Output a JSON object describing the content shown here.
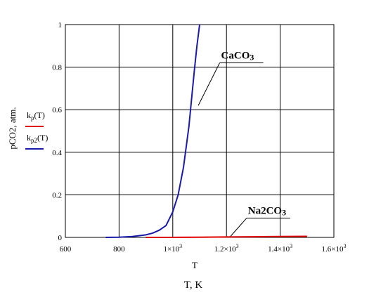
{
  "chart_data": {
    "type": "line",
    "xlabel": "T",
    "xlabel_outer": "T, K",
    "ylabel": "pCO2, atm.",
    "xlim": [
      600,
      1600
    ],
    "ylim": [
      0,
      1
    ],
    "grid": true,
    "x_ticks": [
      600,
      800,
      1000,
      1200,
      1400,
      1600
    ],
    "x_tick_labels": [
      {
        "base": "600",
        "exp": ""
      },
      {
        "base": "800",
        "exp": ""
      },
      {
        "base": "1×10",
        "exp": "3"
      },
      {
        "base": "1.2×10",
        "exp": "3"
      },
      {
        "base": "1.4×10",
        "exp": "3"
      },
      {
        "base": "1.6×10",
        "exp": "3"
      }
    ],
    "y_ticks": [
      0,
      0.2,
      0.4,
      0.6,
      0.8,
      1
    ],
    "y_tick_labels": [
      "0",
      "0.2",
      "0.4",
      "0.6",
      "0.8",
      "1"
    ],
    "legend": [
      {
        "label": "k",
        "sub": "p",
        "suffix": "(T)",
        "color": "#e00000"
      },
      {
        "label": "k",
        "sub": "p2",
        "suffix": "(T)",
        "color": "#1a1aa8"
      }
    ],
    "series": [
      {
        "name": "kp(T)",
        "color": "#e00000",
        "x": [
          900,
          1000,
          1100,
          1200,
          1300,
          1400,
          1500
        ],
        "y": [
          0,
          0,
          0.001,
          0.002,
          0.003,
          0.004,
          0.005
        ]
      },
      {
        "name": "kp2(T)",
        "color": "#1a1aa8",
        "x": [
          750,
          800,
          850,
          900,
          925,
          950,
          975,
          1000,
          1020,
          1040,
          1060,
          1080,
          1090,
          1100
        ],
        "y": [
          0,
          0.001,
          0.004,
          0.012,
          0.02,
          0.034,
          0.056,
          0.12,
          0.2,
          0.33,
          0.52,
          0.78,
          0.9,
          1.0
        ]
      }
    ],
    "annotations": [
      {
        "text": "CaCO",
        "sub": "3",
        "label_x": 1180,
        "label_y": 0.84,
        "line_to_x": 1095,
        "line_to_y": 0.62
      },
      {
        "text": "Na2CO",
        "sub": "3",
        "label_x": 1280,
        "label_y": 0.11,
        "line_to_x": 1215,
        "line_to_y": 0.005
      }
    ]
  }
}
